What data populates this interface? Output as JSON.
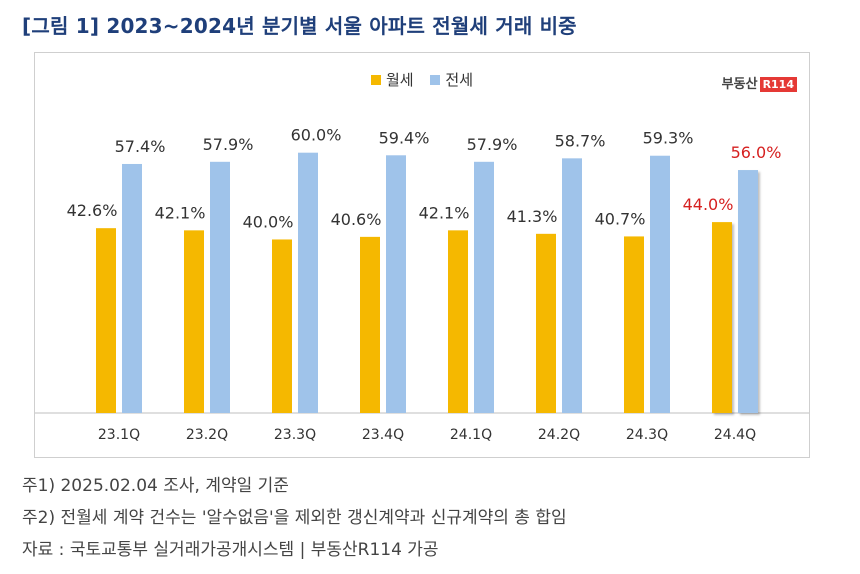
{
  "figure_title": "[그림 1] 2023~2024년 분기별 서울 아파트 전월세 거래 비중",
  "brand": {
    "text": "부동산",
    "box": "R114"
  },
  "legend": [
    {
      "label": "월세",
      "color": "#f5b800"
    },
    {
      "label": "전세",
      "color": "#9fc3ea"
    }
  ],
  "colors": {
    "monthly": "#f5b800",
    "jeonse": "#9fc3ea",
    "highlight_label": "#d62020"
  },
  "chart_data": {
    "type": "bar",
    "title": "",
    "xlabel": "",
    "ylabel": "",
    "ylim": [
      0,
      65
    ],
    "categories": [
      "23.1Q",
      "23.2Q",
      "23.3Q",
      "23.4Q",
      "24.1Q",
      "24.2Q",
      "24.3Q",
      "24.4Q"
    ],
    "series": [
      {
        "name": "월세",
        "values": [
          42.6,
          42.1,
          40.0,
          40.6,
          42.1,
          41.3,
          40.7,
          44.0
        ],
        "labels": [
          "42.6%",
          "42.1%",
          "40.0%",
          "40.6%",
          "42.1%",
          "41.3%",
          "40.7%",
          "44.0%"
        ]
      },
      {
        "name": "전세",
        "values": [
          57.4,
          57.9,
          60.0,
          59.4,
          57.9,
          58.7,
          59.3,
          56.0
        ],
        "labels": [
          "57.4%",
          "57.9%",
          "60.0%",
          "59.4%",
          "57.9%",
          "58.7%",
          "59.3%",
          "56.0%"
        ]
      }
    ],
    "highlight_category": "24.4Q",
    "grid": false,
    "legend_position": "top-center"
  },
  "notes": [
    "주1) 2025.02.04 조사, 계약일 기준",
    "주2) 전월세 계약 건수는 '알수없음'을 제외한 갱신계약과 신규계약의 총 합임",
    "자료 : 국토교통부 실거래가공개시스템 | 부동산R114 가공"
  ]
}
